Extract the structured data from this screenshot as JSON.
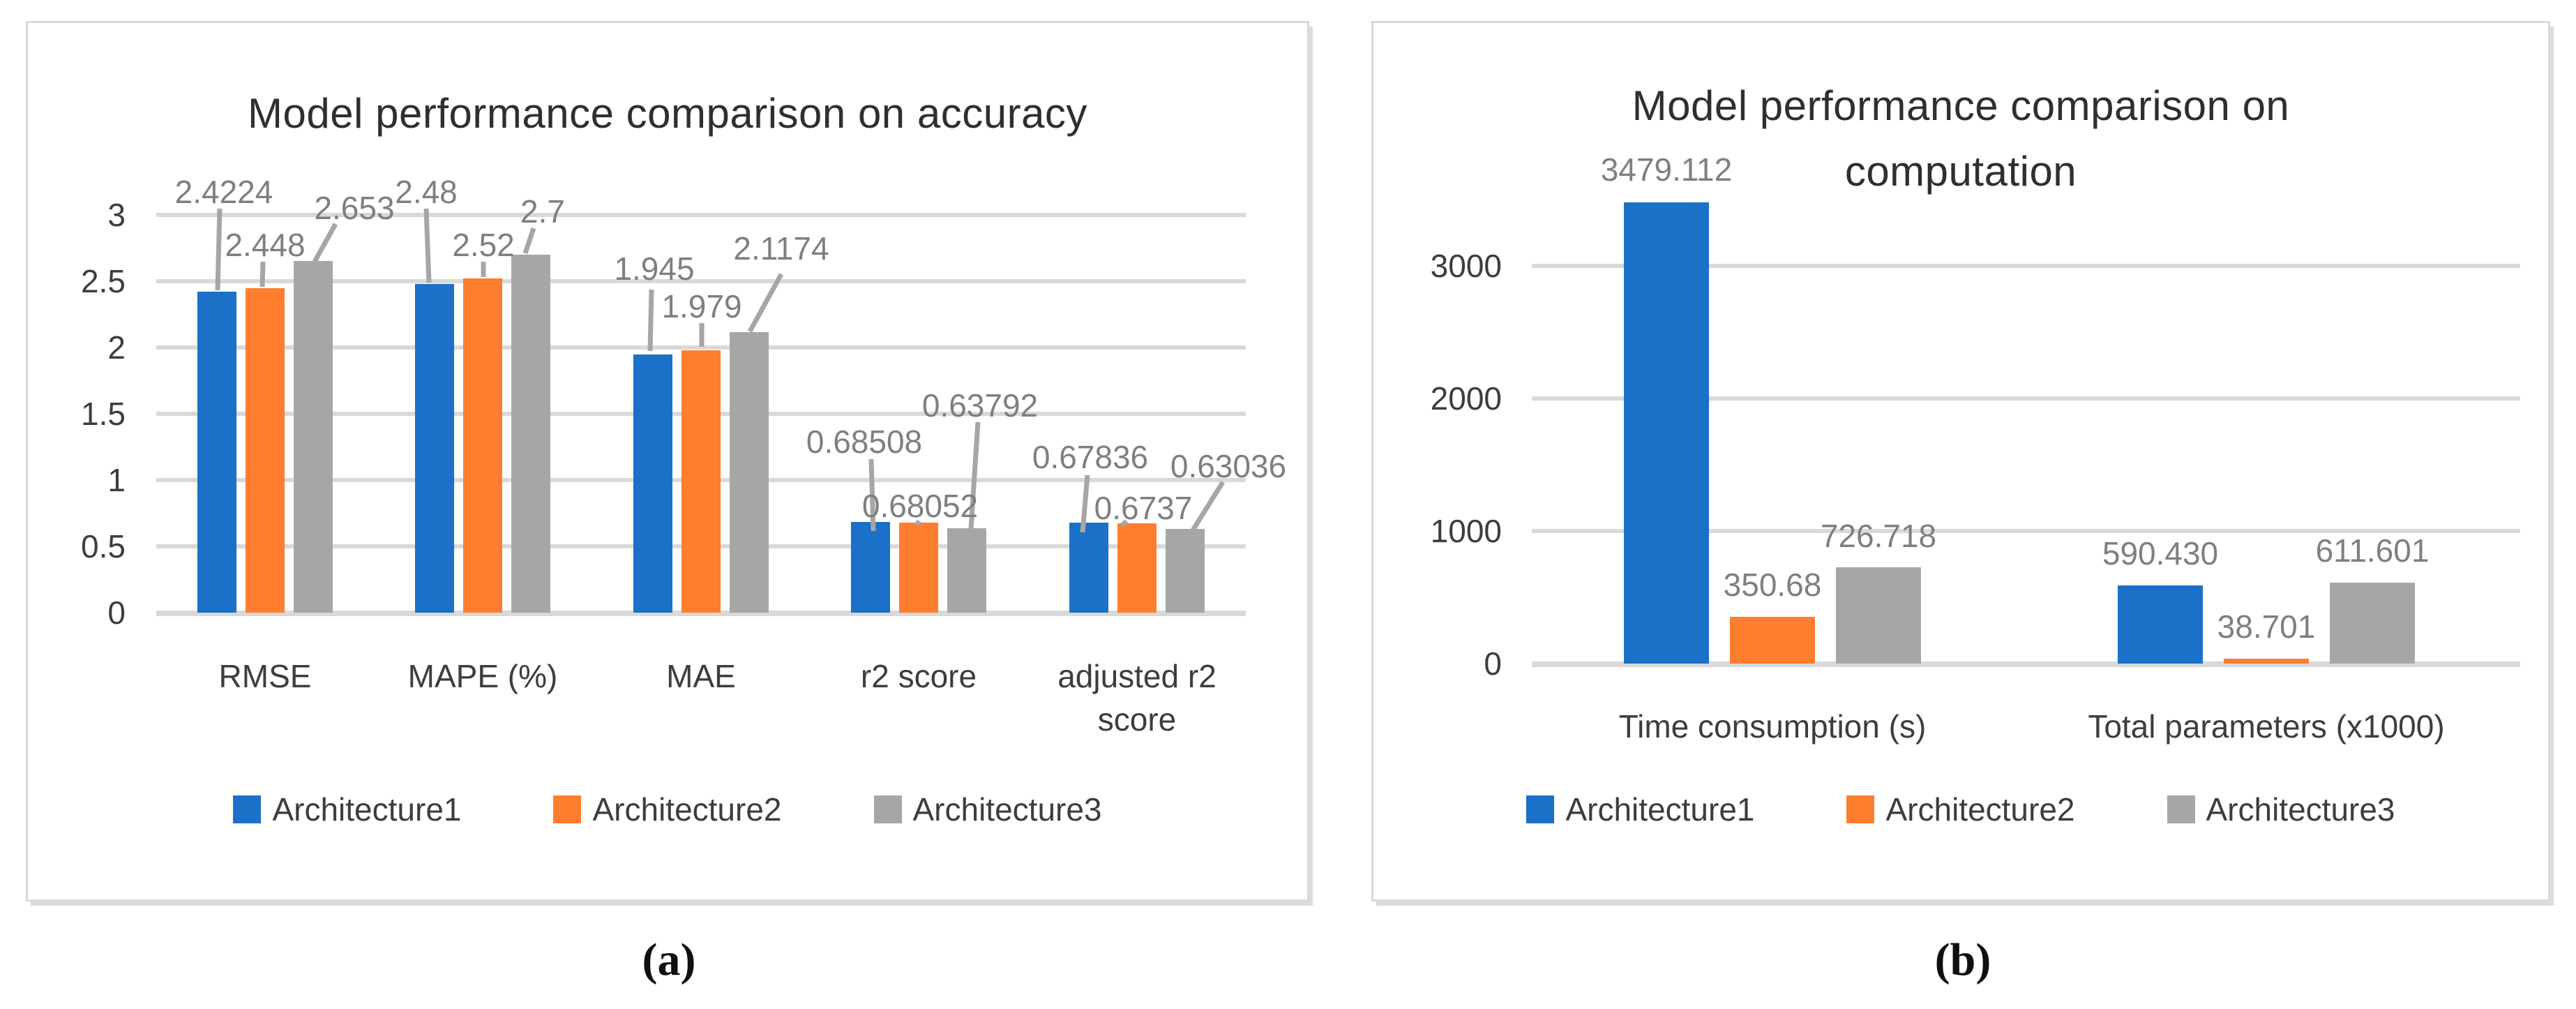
{
  "figure": {
    "captions": {
      "a": "(a)",
      "b": "(b)"
    },
    "colors": {
      "series": [
        "#1B70C8",
        "#FF7D2E",
        "#A6A6A6"
      ],
      "gridline": "#D9D9D9",
      "panel_border": "#D9D9D9",
      "data_label": "#7F7F7F",
      "leader_line": "#A6A6A6",
      "axis_text": "#3D3D3D",
      "title_text": "#2F2F2F"
    },
    "legend_items": [
      "Architecture1",
      "Architecture2",
      "Architecture3"
    ]
  },
  "chart_data": [
    {
      "type": "bar",
      "title": "Model performance comparison on accuracy",
      "title_lines": [
        "Model performance comparison on accuracy"
      ],
      "categories": [
        "RMSE",
        "MAPE (%)",
        "MAE",
        "r2 score",
        "adjusted r2 score"
      ],
      "series": [
        {
          "name": "Architecture1",
          "color": "#1B70C8",
          "values": [
            2.4224,
            2.48,
            1.945,
            0.68508,
            0.67836
          ],
          "value_labels": [
            "2.4224",
            "2.48",
            "1.945",
            "0.68508",
            "0.67836"
          ]
        },
        {
          "name": "Architecture2",
          "color": "#FF7D2E",
          "values": [
            2.448,
            2.52,
            1.979,
            0.68052,
            0.6737
          ],
          "value_labels": [
            "2.448",
            "2.52",
            "1.979",
            "0.68052",
            "0.6737"
          ]
        },
        {
          "name": "Architecture3",
          "color": "#A6A6A6",
          "values": [
            2.653,
            2.7,
            2.1174,
            0.63792,
            0.63036
          ],
          "value_labels": [
            "2.653",
            "2.7",
            "2.1174",
            "0.63792",
            "0.63036"
          ]
        }
      ],
      "y_axis": {
        "min": 0,
        "max": 3,
        "step": 0.5,
        "ticks": [
          {
            "v": 0,
            "label": "0"
          },
          {
            "v": 0.5,
            "label": "0.5"
          },
          {
            "v": 1,
            "label": "1"
          },
          {
            "v": 1.5,
            "label": "1.5"
          },
          {
            "v": 2,
            "label": "2"
          },
          {
            "v": 2.5,
            "label": "2.5"
          },
          {
            "v": 3,
            "label": "3"
          }
        ]
      },
      "grid": true,
      "legend_position": "bottom"
    },
    {
      "type": "bar",
      "title": "Model performance comparison on computation",
      "title_lines": [
        "Model performance comparison on",
        "computation"
      ],
      "categories": [
        "Time consumption (s)",
        "Total parameters (x1000)"
      ],
      "series": [
        {
          "name": "Architecture1",
          "color": "#1B70C8",
          "values": [
            3479.112,
            590.43
          ],
          "value_labels": [
            "3479.112",
            "590.430"
          ]
        },
        {
          "name": "Architecture2",
          "color": "#FF7D2E",
          "values": [
            350.68,
            38.701
          ],
          "value_labels": [
            "350.68",
            "38.701"
          ]
        },
        {
          "name": "Architecture3",
          "color": "#A6A6A6",
          "values": [
            726.718,
            611.601
          ],
          "value_labels": [
            "726.718",
            "611.601"
          ]
        }
      ],
      "y_axis": {
        "min": 0,
        "max": 3500,
        "step": 1000,
        "ticks": [
          {
            "v": 0,
            "label": "0"
          },
          {
            "v": 1000,
            "label": "1000"
          },
          {
            "v": 2000,
            "label": "2000"
          },
          {
            "v": 3000,
            "label": "3000"
          }
        ]
      },
      "grid": true,
      "legend_position": "bottom"
    }
  ]
}
